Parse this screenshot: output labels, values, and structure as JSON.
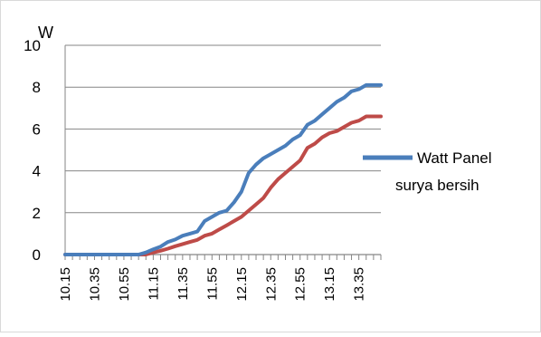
{
  "chart_data": {
    "type": "line",
    "ylabel": "W",
    "xlabel": "",
    "title": "",
    "ylim": [
      0,
      10
    ],
    "yticks": [
      "0",
      "2",
      "4",
      "6",
      "8",
      "10"
    ],
    "x": [
      "10.15",
      "10.20",
      "10.25",
      "10.30",
      "10.35",
      "10.40",
      "10.45",
      "10.50",
      "10.55",
      "11.00",
      "11.05",
      "11.10",
      "11.15",
      "11.20",
      "11.25",
      "11.30",
      "11.35",
      "11.40",
      "11.45",
      "11.50",
      "11.55",
      "12.00",
      "12.05",
      "12.10",
      "12.15",
      "12.20",
      "12.25",
      "12.30",
      "12.35",
      "12.40",
      "12.45",
      "12.50",
      "12.55",
      "13.00",
      "13.05",
      "13.10",
      "13.15",
      "13.20",
      "13.25",
      "13.30",
      "13.35",
      "13.40",
      "13.45",
      "13.50"
    ],
    "xtick_labels": [
      "10.15",
      "10.35",
      "10.55",
      "11.15",
      "11.35",
      "11.55",
      "12.15",
      "12.35",
      "12.55",
      "13.15",
      "13.35"
    ],
    "grid": "horizontal",
    "legend_position": "right",
    "series": [
      {
        "name": "Watt Panel surya bersih",
        "color": "#4a7ebb",
        "values": [
          0,
          0,
          0,
          0,
          0,
          0,
          0,
          0,
          0,
          0,
          0,
          0.1,
          0.25,
          0.38,
          0.6,
          0.72,
          0.9,
          1.0,
          1.1,
          1.6,
          1.8,
          2.0,
          2.1,
          2.5,
          3.0,
          3.9,
          4.3,
          4.6,
          4.8,
          5.0,
          5.2,
          5.5,
          5.7,
          6.2,
          6.4,
          6.7,
          7.0,
          7.3,
          7.5,
          7.8,
          7.9,
          8.1,
          8.1,
          8.1
        ]
      },
      {
        "name": "",
        "color": "#be4b48",
        "values": [
          0,
          0,
          0,
          0,
          0,
          0,
          0,
          0,
          0,
          0,
          0,
          0,
          0.1,
          0.18,
          0.28,
          0.4,
          0.5,
          0.6,
          0.7,
          0.9,
          1.0,
          1.2,
          1.4,
          1.6,
          1.8,
          2.1,
          2.4,
          2.7,
          3.2,
          3.6,
          3.9,
          4.2,
          4.5,
          5.1,
          5.3,
          5.6,
          5.8,
          5.9,
          6.1,
          6.3,
          6.4,
          6.6,
          6.6,
          6.6
        ]
      }
    ]
  }
}
